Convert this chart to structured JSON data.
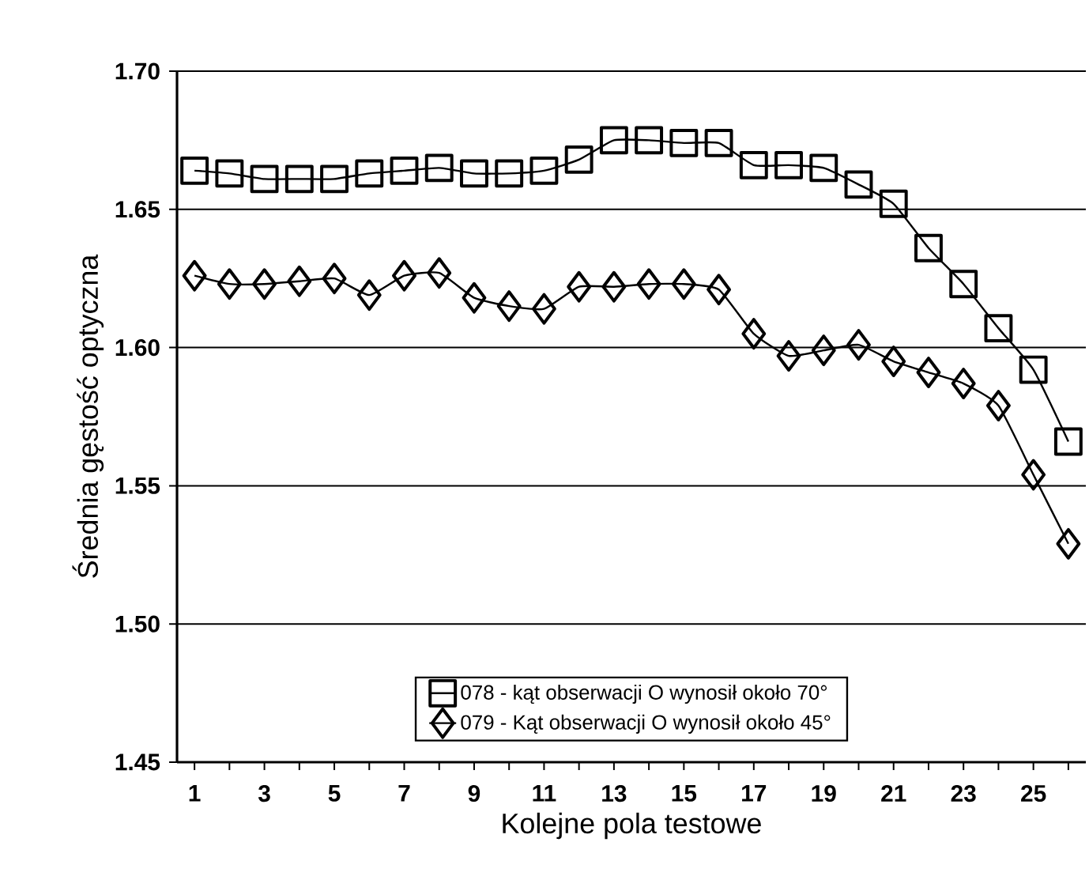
{
  "chart_data": {
    "type": "line",
    "xlabel": "Kolejne pola testowe",
    "ylabel": "Średnia gęstość optyczna",
    "categories": [
      "1",
      null,
      "3",
      null,
      "5",
      null,
      "7",
      null,
      "9",
      null,
      "11",
      null,
      "13",
      null,
      "15",
      null,
      "17",
      null,
      "19",
      null,
      "21",
      null,
      "23",
      null,
      "25",
      null
    ],
    "series": [
      {
        "name": "078 - kąt obserwacji O wynosił około 70°",
        "color": "#000000",
        "marker": "square",
        "values": [
          1.664,
          1.663,
          1.661,
          1.661,
          1.661,
          1.663,
          1.664,
          1.665,
          1.663,
          1.663,
          1.664,
          1.668,
          1.675,
          1.675,
          1.674,
          1.674,
          1.666,
          1.666,
          1.665,
          1.659,
          1.652,
          1.636,
          1.623,
          1.607,
          1.592,
          1.566
        ]
      },
      {
        "name": "079 - Kąt obserwacji O wynosił około 45°",
        "color": "#000000",
        "marker": "diamond",
        "values": [
          1.626,
          1.623,
          1.623,
          1.624,
          1.625,
          1.619,
          1.626,
          1.627,
          1.618,
          1.615,
          1.614,
          1.622,
          1.622,
          1.623,
          1.623,
          1.621,
          1.605,
          1.597,
          1.599,
          1.601,
          1.595,
          1.591,
          1.587,
          1.579,
          1.554,
          1.529
        ]
      }
    ],
    "ylim": [
      1.45,
      1.7
    ],
    "yticks": [
      {
        "value": 1.45,
        "label": "1.45"
      },
      {
        "value": 1.5,
        "label": "1.50"
      },
      {
        "value": 1.55,
        "label": "1.55"
      },
      {
        "value": 1.6,
        "label": "1.60"
      },
      {
        "value": 1.65,
        "label": "1.65"
      },
      {
        "value": 1.7,
        "label": "1.70"
      }
    ],
    "grid": "y",
    "legend": "bottom",
    "line_style": "solid"
  }
}
